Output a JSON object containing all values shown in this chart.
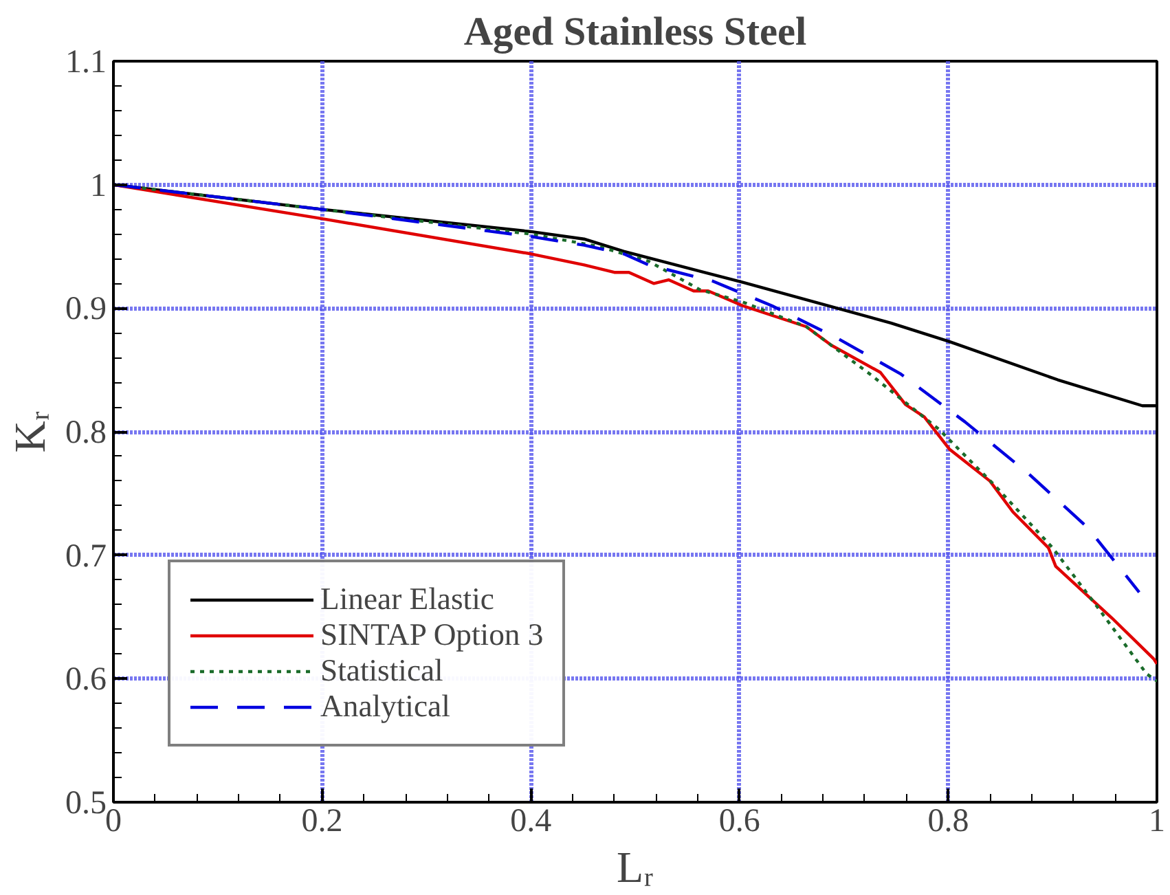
{
  "chart_data": {
    "type": "line",
    "title": "Aged Stainless Steel",
    "xlabel": "Lᵣ",
    "ylabel": "Kᵣ",
    "xlim": [
      0,
      1
    ],
    "ylim": [
      0.5,
      1.1
    ],
    "xticks": [
      0,
      0.2,
      0.4,
      0.6,
      0.8,
      1
    ],
    "yticks": [
      0.5,
      0.6,
      0.7,
      0.8,
      0.9,
      1,
      1.1
    ],
    "grid": true,
    "legend": "bottom left",
    "series": [
      {
        "name": "Linear Elastic",
        "color": "#000000",
        "line_style": "solid",
        "x": [
          0,
          0.2,
          0.4,
          0.451,
          0.489,
          0.603,
          0.745,
          0.801,
          0.905,
          0.986,
          1
        ],
        "values": [
          1,
          0.98,
          0.962,
          0.956,
          0.946,
          0.921,
          0.888,
          0.873,
          0.842,
          0.821,
          0.821
        ]
      },
      {
        "name": "SINTAP Option 3",
        "color": "#e00000",
        "line_style": "solid",
        "x": [
          0,
          0.196,
          0.4,
          0.451,
          0.48,
          0.494,
          0.518,
          0.532,
          0.556,
          0.57,
          0.603,
          0.664,
          0.688,
          0.735,
          0.759,
          0.777,
          0.801,
          0.84,
          0.862,
          0.896,
          0.903,
          0.957,
          0.997,
          1
        ],
        "values": [
          1,
          0.973,
          0.944,
          0.935,
          0.929,
          0.929,
          0.92,
          0.923,
          0.914,
          0.914,
          0.902,
          0.885,
          0.87,
          0.848,
          0.822,
          0.812,
          0.786,
          0.76,
          0.735,
          0.706,
          0.691,
          0.649,
          0.616,
          0.612
        ]
      },
      {
        "name": "Statistical",
        "color": "#1a6b2a",
        "line_style": "dotted",
        "x": [
          0,
          0.2,
          0.4,
          0.465,
          0.513,
          0.562,
          0.603,
          0.664,
          0.726,
          0.791,
          0.844,
          0.9,
          0.943,
          0.99,
          1
        ],
        "values": [
          1,
          0.98,
          0.96,
          0.95,
          0.938,
          0.915,
          0.905,
          0.885,
          0.846,
          0.802,
          0.757,
          0.706,
          0.658,
          0.604,
          0.598
        ]
      },
      {
        "name": "Analytical",
        "color": "#0000e0",
        "line_style": "dashed",
        "x": [
          0,
          0.2,
          0.4,
          0.451,
          0.489,
          0.513,
          0.574,
          0.631,
          0.693,
          0.754,
          0.816,
          0.877,
          0.934,
          0.983
        ],
        "values": [
          1,
          0.98,
          0.958,
          0.951,
          0.944,
          0.935,
          0.922,
          0.902,
          0.876,
          0.847,
          0.808,
          0.766,
          0.722,
          0.67
        ]
      }
    ]
  }
}
